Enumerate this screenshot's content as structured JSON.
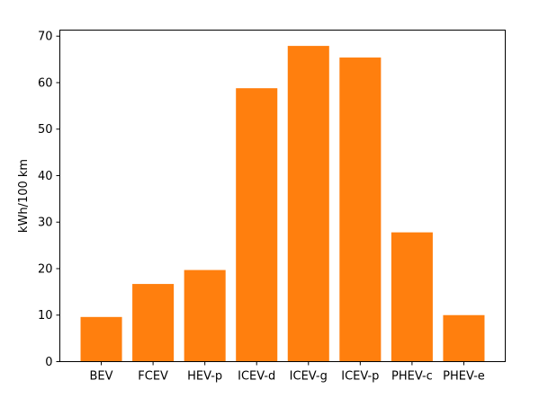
{
  "chart_data": {
    "type": "bar",
    "title": "",
    "xlabel": "",
    "ylabel": "kWh/100 km",
    "categories": [
      "BEV",
      "FCEV",
      "HEV-p",
      "ICEV-d",
      "ICEV-g",
      "ICEV-p",
      "PHEV-c",
      "PHEV-e"
    ],
    "values": [
      9.6,
      16.7,
      19.7,
      58.8,
      67.9,
      65.4,
      27.8,
      10.0
    ],
    "ylim": [
      0,
      71.3
    ],
    "yticks": [
      0,
      10,
      20,
      30,
      40,
      50,
      60,
      70
    ],
    "bar_color": "#ff7f0e",
    "grid": false,
    "legend": "none"
  }
}
